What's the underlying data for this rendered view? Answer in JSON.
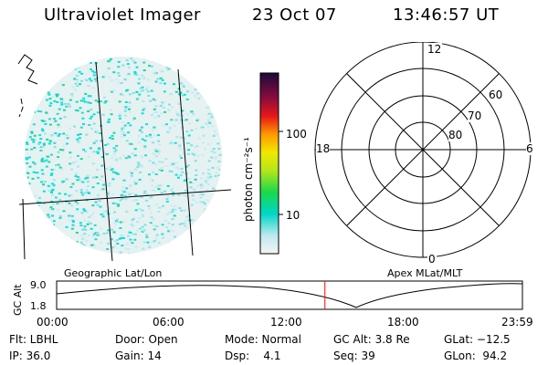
{
  "header": {
    "title": "Ultraviolet Imager",
    "date": "23 Oct 07",
    "time": "13:46:57 UT"
  },
  "colorbar": {
    "label": "photon cm⁻²s⁻¹",
    "ticks": [
      "100",
      "10"
    ]
  },
  "polar": {
    "hour_labels": [
      "12",
      "18",
      "6",
      "0"
    ],
    "lat_labels": [
      "60",
      "70",
      "80"
    ]
  },
  "timeline": {
    "left_caption": "Geographic Lat/Lon",
    "right_caption": "Apex MLat/MLT",
    "y_label": "GC Alt",
    "y_ticks": [
      "9.0",
      "1.8"
    ],
    "x_ticks": [
      "00:00",
      "06:00",
      "12:00",
      "18:00",
      "23:59"
    ],
    "current_time_fraction": 0.576
  },
  "status": {
    "flt": "Flt: LBHL",
    "ip": "IP: 36.0",
    "door": "Door: Open",
    "gain": "Gain: 14",
    "mode": "Mode: Normal",
    "dsp": "Dsp:    4.1",
    "gcalt": "GC Alt: 3.8 Re",
    "seq": "Seq: 39",
    "glat": "GLat: −12.5",
    "glon": "GLon:  94.2"
  },
  "colors": {
    "accent": "#ff0000",
    "cyan": "#00e5d8",
    "faint": "#cfe8ea"
  }
}
